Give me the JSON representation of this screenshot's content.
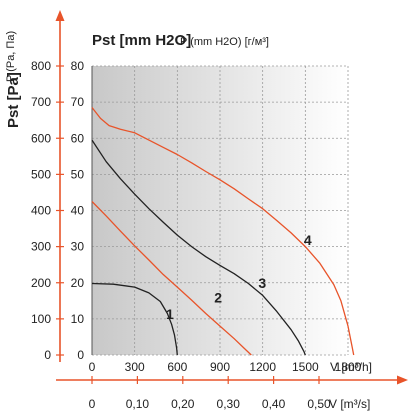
{
  "colors": {
    "accent": "#e8542a",
    "black_curve": "#222222",
    "grid": "#9a9a9a"
  },
  "titles": {
    "pst_title": "Pst [mm H2O]",
    "p_title": "P (mm H2O) [г/м³]",
    "left_axis_title": "Pst [Pa]",
    "left_axis_sub": "P (Pa, Па)",
    "v_m3h_label": "V [m³/h]",
    "v_m3s_label": "V [m³/s]"
  },
  "chart_data": {
    "type": "line",
    "grid": true,
    "xlabel": "V [m³/h]",
    "ylabel": "Pst [mm H2O]",
    "xlim": [
      0,
      1800
    ],
    "ylim": [
      0,
      80
    ],
    "x_ticks": [
      "0",
      "300",
      "600",
      "900",
      "1200",
      "1500",
      "1800"
    ],
    "x_ticks_secondary": [
      "0",
      "0,10",
      "0,20",
      "0,30",
      "0,40",
      "0,50"
    ],
    "y_ticks_mmh2o": [
      "0",
      "10",
      "20",
      "30",
      "40",
      "50",
      "60",
      "70",
      "80"
    ],
    "y_ticks_pa": [
      "0",
      "100",
      "200",
      "300",
      "400",
      "500",
      "600",
      "700",
      "800"
    ],
    "series": [
      {
        "name": "1",
        "color": "#222222",
        "label_at": [
          520,
          10
        ],
        "points": [
          [
            0,
            19.8
          ],
          [
            150,
            19.6
          ],
          [
            300,
            18.8
          ],
          [
            400,
            17.2
          ],
          [
            480,
            14.8
          ],
          [
            530,
            11.5
          ],
          [
            560,
            8.5
          ],
          [
            580,
            5.5
          ],
          [
            595,
            2
          ],
          [
            600,
            0
          ]
        ]
      },
      {
        "name": "2",
        "color": "#e8542a",
        "label_at": [
          860,
          14.5
        ],
        "points": [
          [
            0,
            42.5
          ],
          [
            100,
            38.5
          ],
          [
            200,
            34.3
          ],
          [
            300,
            30.2
          ],
          [
            400,
            26.3
          ],
          [
            500,
            22.3
          ],
          [
            600,
            18.8
          ],
          [
            700,
            15.2
          ],
          [
            800,
            11.5
          ],
          [
            900,
            8
          ],
          [
            1000,
            4.5
          ],
          [
            1080,
            1.5
          ],
          [
            1120,
            0
          ]
        ]
      },
      {
        "name": "3",
        "color": "#222222",
        "label_at": [
          1170,
          18.5
        ],
        "points": [
          [
            0,
            59.5
          ],
          [
            100,
            53.5
          ],
          [
            200,
            48.8
          ],
          [
            300,
            44.5
          ],
          [
            400,
            40.5
          ],
          [
            500,
            36.8
          ],
          [
            600,
            33.2
          ],
          [
            700,
            30
          ],
          [
            800,
            27.2
          ],
          [
            900,
            24.8
          ],
          [
            1000,
            22.5
          ],
          [
            1100,
            19.8
          ],
          [
            1200,
            16.5
          ],
          [
            1300,
            12
          ],
          [
            1400,
            7
          ],
          [
            1450,
            4
          ],
          [
            1490,
            1
          ],
          [
            1500,
            0
          ]
        ]
      },
      {
        "name": "4",
        "color": "#e8542a",
        "label_at": [
          1490,
          30.5
        ],
        "points": [
          [
            0,
            68.5
          ],
          [
            60,
            65.5
          ],
          [
            120,
            63.5
          ],
          [
            200,
            62.5
          ],
          [
            300,
            61.5
          ],
          [
            400,
            59.5
          ],
          [
            500,
            57.5
          ],
          [
            600,
            55.5
          ],
          [
            700,
            53.2
          ],
          [
            800,
            50.8
          ],
          [
            900,
            48.5
          ],
          [
            1000,
            46
          ],
          [
            1100,
            43.2
          ],
          [
            1200,
            40.5
          ],
          [
            1300,
            37.2
          ],
          [
            1400,
            33.8
          ],
          [
            1500,
            30
          ],
          [
            1600,
            25.5
          ],
          [
            1700,
            19.5
          ],
          [
            1750,
            15
          ],
          [
            1800,
            8
          ],
          [
            1830,
            2
          ],
          [
            1840,
            0
          ]
        ]
      }
    ]
  }
}
